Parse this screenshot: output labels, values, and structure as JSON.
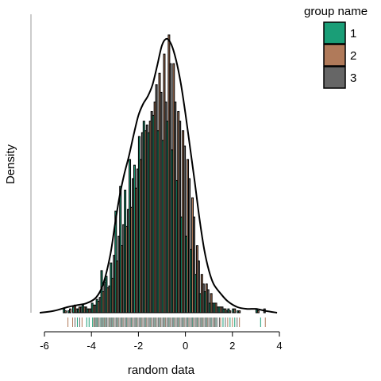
{
  "chart_data": {
    "type": "bar",
    "subtype": "overlaid histogram with density curve and rug",
    "xlabel": "random data",
    "ylabel": "Density",
    "x_ticks": [
      -6,
      -4,
      -2,
      0,
      2,
      4
    ],
    "xlim": [
      -6,
      4
    ],
    "legend": {
      "title": "group name",
      "position": "top-right",
      "entries": [
        {
          "label": "1",
          "color": "#1a9e77"
        },
        {
          "label": "2",
          "color": "#b07a5a"
        },
        {
          "label": "3",
          "color": "#666666"
        }
      ]
    },
    "bin_width": 0.2,
    "bin_x": [
      -5.2,
      -5.0,
      -4.8,
      -4.6,
      -4.4,
      -4.2,
      -4.0,
      -3.8,
      -3.6,
      -3.4,
      -3.2,
      -3.0,
      -2.8,
      -2.6,
      -2.4,
      -2.2,
      -2.0,
      -1.8,
      -1.6,
      -1.4,
      -1.2,
      -1.0,
      -0.8,
      -0.6,
      -0.4,
      -0.2,
      0.0,
      0.2,
      0.4,
      0.6,
      0.8,
      1.0,
      1.2,
      1.4,
      1.6,
      1.8,
      2.0,
      2.2,
      2.4,
      2.6,
      2.8,
      3.0,
      3.2,
      3.4
    ],
    "series": [
      {
        "name": "1",
        "color": "#1a9e77",
        "values": [
          0.004,
          0.002,
          0.006,
          0.004,
          0.008,
          0.004,
          0.01,
          0.014,
          0.044,
          0.038,
          0.052,
          0.106,
          0.132,
          0.128,
          0.16,
          0.154,
          0.184,
          0.2,
          0.188,
          0.206,
          0.19,
          0.18,
          0.2,
          0.17,
          0.138,
          0.1,
          0.08,
          0.066,
          0.04,
          0.02,
          0.022,
          0.01,
          0.01,
          0.006,
          0.004,
          0.004,
          0.004,
          0.002,
          0.0,
          0.0,
          0.0,
          0.004,
          0.0,
          0.0
        ]
      },
      {
        "name": "2",
        "color": "#b07a5a",
        "values": [
          0.002,
          0.004,
          0.008,
          0.006,
          0.006,
          0.004,
          0.008,
          0.012,
          0.022,
          0.026,
          0.036,
          0.054,
          0.07,
          0.09,
          0.11,
          0.13,
          0.16,
          0.19,
          0.2,
          0.22,
          0.25,
          0.27,
          0.29,
          0.26,
          0.21,
          0.19,
          0.16,
          0.12,
          0.07,
          0.04,
          0.03,
          0.02,
          0.01,
          0.006,
          0.004,
          0.002,
          0.004,
          0.002,
          0.0,
          0.0,
          0.0,
          0.002,
          0.0,
          0.0
        ]
      },
      {
        "name": "3",
        "color": "#666666",
        "values": [
          0.0,
          0.0,
          0.004,
          0.006,
          0.006,
          0.004,
          0.008,
          0.016,
          0.032,
          0.028,
          0.06,
          0.08,
          0.092,
          0.108,
          0.14,
          0.15,
          0.188,
          0.196,
          0.21,
          0.238,
          0.23,
          0.22,
          0.26,
          0.22,
          0.2,
          0.174,
          0.14,
          0.1,
          0.054,
          0.03,
          0.024,
          0.01,
          0.006,
          0.006,
          0.002,
          0.0,
          0.0,
          0.0,
          0.0,
          0.0,
          0.0,
          0.0,
          0.004,
          0.0
        ]
      }
    ],
    "density_curve": {
      "x": [
        -6.2,
        -5.6,
        -5.0,
        -4.6,
        -4.2,
        -3.8,
        -3.5,
        -3.2,
        -3.0,
        -2.8,
        -2.6,
        -2.4,
        -2.2,
        -2.0,
        -1.8,
        -1.6,
        -1.4,
        -1.2,
        -1.0,
        -0.8,
        -0.6,
        -0.4,
        -0.2,
        0.0,
        0.2,
        0.4,
        0.6,
        0.8,
        1.0,
        1.2,
        1.5,
        1.8,
        2.2,
        2.6,
        3.0,
        3.4,
        3.9
      ],
      "y": [
        0.0,
        0.002,
        0.006,
        0.008,
        0.01,
        0.016,
        0.03,
        0.06,
        0.092,
        0.122,
        0.145,
        0.164,
        0.186,
        0.206,
        0.218,
        0.226,
        0.238,
        0.258,
        0.279,
        0.286,
        0.28,
        0.264,
        0.24,
        0.208,
        0.172,
        0.136,
        0.098,
        0.066,
        0.044,
        0.03,
        0.02,
        0.012,
        0.006,
        0.004,
        0.004,
        0.002,
        0.0
      ]
    },
    "rug": [
      {
        "group": "1",
        "x": [
          -4.6,
          -4.2,
          -4.1,
          -3.95,
          -3.8,
          -3.75,
          -3.6,
          -3.5,
          -3.4,
          -3.2,
          -3.1,
          -2.9,
          -2.7,
          -2.5,
          -2.3,
          -2.1,
          -1.9,
          -1.7,
          -1.5,
          -1.3,
          -1.1,
          -0.9,
          -0.7,
          -0.5,
          -0.3,
          -0.1,
          0.1,
          0.3,
          0.5,
          0.7,
          0.9,
          1.1,
          1.3,
          1.6,
          1.9,
          2.1,
          3.2
        ]
      },
      {
        "group": "2",
        "x": [
          -5.0,
          -4.8,
          -4.4,
          -3.9,
          -3.7,
          -3.45,
          -3.25,
          -3.05,
          -2.85,
          -2.65,
          -2.45,
          -2.25,
          -2.05,
          -1.85,
          -1.65,
          -1.45,
          -1.25,
          -1.05,
          -0.85,
          -0.65,
          -0.45,
          -0.25,
          -0.05,
          0.15,
          0.35,
          0.55,
          0.75,
          0.95,
          1.2,
          1.5,
          1.8,
          2.0,
          2.3,
          3.4
        ]
      },
      {
        "group": "3",
        "x": [
          -4.7,
          -4.5,
          -3.85,
          -3.55,
          -3.35,
          -3.15,
          -2.95,
          -2.75,
          -2.55,
          -2.35,
          -2.15,
          -1.95,
          -1.75,
          -1.55,
          -1.35,
          -1.15,
          -0.95,
          -0.75,
          -0.55,
          -0.35,
          -0.15,
          0.05,
          0.25,
          0.45,
          0.65,
          0.85,
          1.05,
          1.25,
          1.45,
          1.7,
          2.2
        ]
      }
    ]
  }
}
